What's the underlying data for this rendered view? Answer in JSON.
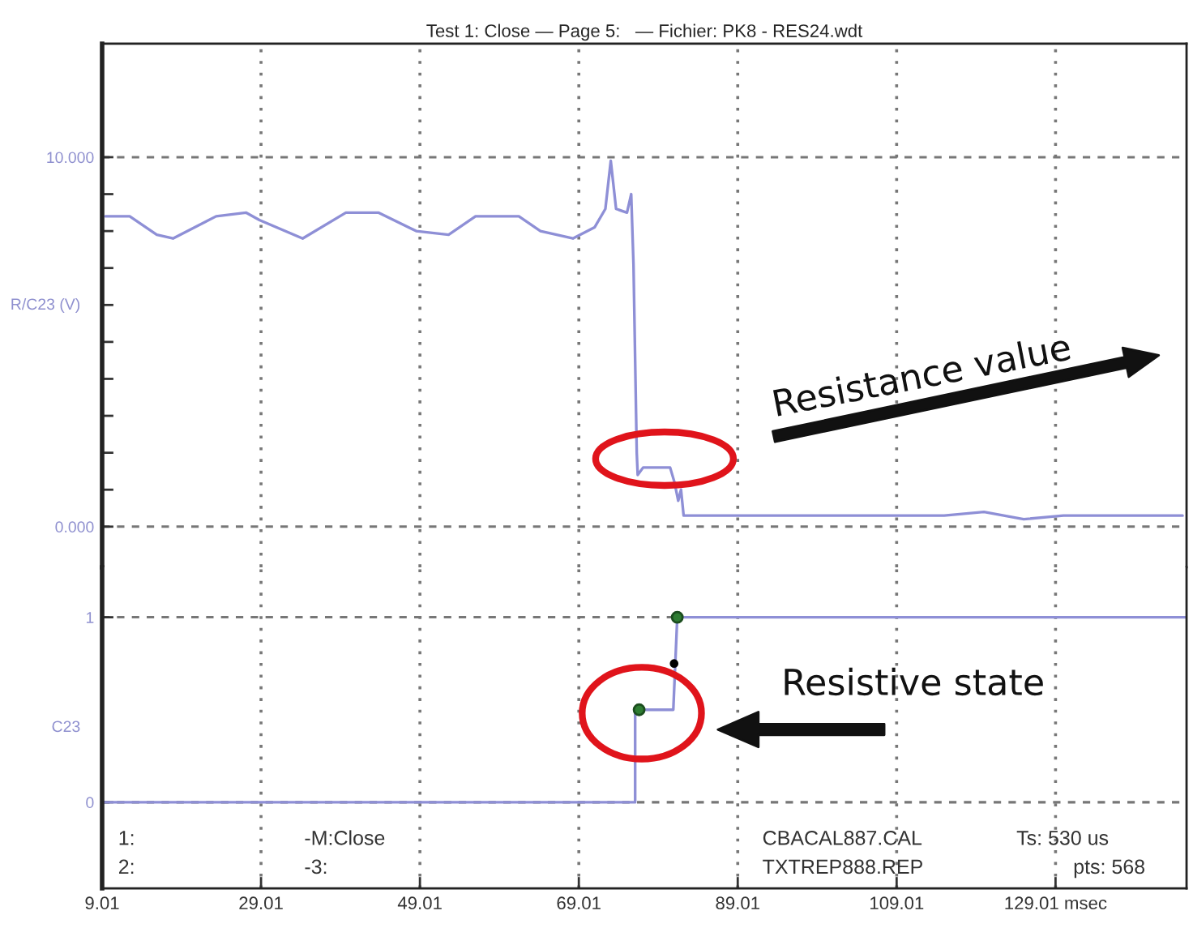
{
  "chart_data": [
    {
      "type": "line",
      "title": "Test 1: Close — Page 5:   — Fichier: PK8 - RES24.wdt",
      "ylabel": "R/C23 (V)",
      "xlim": [
        9.01,
        145.5
      ],
      "xticks": [
        {
          "value": 9.01,
          "label": null
        },
        {
          "value": 29.01,
          "label": null
        },
        {
          "value": 49.01,
          "label": null
        },
        {
          "value": 69.01,
          "label": null
        },
        {
          "value": 89.01,
          "label": null
        },
        {
          "value": 109.01,
          "label": null
        },
        {
          "value": 129.01,
          "label": null
        }
      ],
      "ylim": [
        -1.1,
        13.07
      ],
      "yticks": [
        {
          "value": 0,
          "label": "0.000"
        },
        {
          "value": 1,
          "label": null
        },
        {
          "value": 2,
          "label": null
        },
        {
          "value": 3,
          "label": null
        },
        {
          "value": 4,
          "label": null
        },
        {
          "value": 5,
          "label": null
        },
        {
          "value": 6,
          "label": null
        },
        {
          "value": 7,
          "label": null
        },
        {
          "value": 8,
          "label": null
        },
        {
          "value": 9,
          "label": null
        },
        {
          "value": 10,
          "label": "10.000"
        }
      ],
      "tick_labels": "y",
      "grid": true,
      "marker": "none",
      "line_style": "solid",
      "series": [
        {
          "color": "#8e8fd6",
          "x": [
            9.42,
            12.48,
            15.89,
            17.93,
            23.36,
            27.11,
            28.81,
            34.25,
            39.69,
            43.77,
            48.54,
            52.62,
            56.01,
            61.46,
            64.18,
            68.26,
            70.99,
            72.35,
            73.03,
            73.7,
            75.07,
            75.6,
            75.89,
            76.3,
            76.42,
            77.1,
            77.78,
            80.5,
            81.05,
            81.52,
            81.87,
            82.2,
            83.9,
            95,
            105,
            115,
            120,
            125,
            130,
            135,
            145
          ],
          "values": [
            8.4,
            8.4,
            7.9,
            7.8,
            8.4,
            8.5,
            8.3,
            7.8,
            8.5,
            8.5,
            8.0,
            7.9,
            8.4,
            8.4,
            8.0,
            7.8,
            8.1,
            8.6,
            9.9,
            8.6,
            8.5,
            9.0,
            7.1,
            2.0,
            1.4,
            1.6,
            1.6,
            1.6,
            1.2,
            0.7,
            1.0,
            0.3,
            0.3,
            0.3,
            0.3,
            0.3,
            0.4,
            0.2,
            0.3,
            0.3,
            0.3
          ]
        }
      ],
      "annotations": [
        "Resistance value"
      ]
    },
    {
      "type": "line",
      "ylabel": "C23",
      "xlim": [
        9.01,
        145.5
      ],
      "xticks": [
        9.01,
        29.01,
        49.01,
        69.01,
        89.01,
        109.01,
        {
          "value": 129.01,
          "label": "129.01 msec"
        }
      ],
      "ylim": [
        -0.465,
        1.27
      ],
      "yticks": [
        0,
        1
      ],
      "grid": true,
      "marker": "none",
      "line_style": "solid",
      "series": [
        {
          "color": "#8e8fd6",
          "x": [
            9.01,
            76.1,
            76.1,
            80.9,
            81.4,
            145.5
          ],
          "values": [
            0,
            0,
            0.5,
            0.5,
            1,
            1
          ]
        },
        {
          "type": "scatter",
          "marker": "circle",
          "color": "#2e7d32",
          "x": [
            76.6,
            81.4
          ],
          "values": [
            0.5,
            1
          ]
        },
        {
          "type": "scatter",
          "marker": "circle",
          "color": "#000000",
          "x": [
            81.0
          ],
          "values": [
            0.75
          ]
        }
      ],
      "annotations": [
        "Resistive state",
        "1:",
        "-M:Close",
        "CBACAL887.CAL",
        "Ts: 530 us",
        "2:",
        "-3:",
        "TXTREP888.REP",
        "pts: 568"
      ]
    }
  ]
}
